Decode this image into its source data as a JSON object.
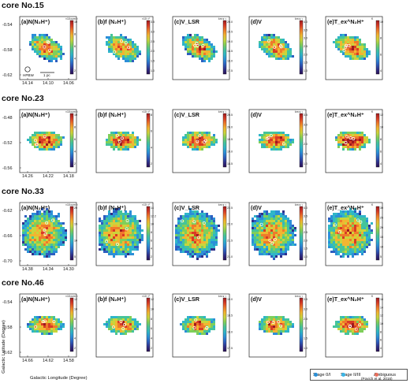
{
  "figure": {
    "rows": [
      {
        "title": "core No.15",
        "yticks": [
          "-0.54",
          "-0.58",
          "-0.62"
        ],
        "xticks": [
          "14.14",
          "14.10",
          "14.06"
        ],
        "hpbw_label": "HPBW",
        "scale_label": "1 pc",
        "panels": [
          {
            "label": "(a)",
            "quantity": "N(N₂H⁺)",
            "unit": "×10¹²cm⁻²",
            "ticks": [
              "10",
              "8",
              "6",
              "4",
              "2"
            ]
          },
          {
            "label": "(b)",
            "quantity": "f (N₂H⁺)",
            "unit": "×10⁻¹⁰",
            "ticks": [
              "3.5",
              "3.0",
              "2.5",
              "2.0",
              "1.5",
              "1.0"
            ]
          },
          {
            "label": "(c)",
            "quantity": "V_LSR",
            "unit": "km s⁻¹",
            "ticks": [
              "20.0",
              "19.5",
              "19.0",
              "18.5",
              "18.0",
              "17.5"
            ]
          },
          {
            "label": "(d)",
            "quantity": "V",
            "unit": "km s⁻¹",
            "ticks": [
              "4.0",
              "3.5",
              "3.0",
              "2.5",
              "2.0",
              "1.5",
              "1.0"
            ]
          },
          {
            "label": "(e)",
            "quantity": "T_ex^N₂H⁺",
            "unit": "K",
            "ticks": [
              "10",
              "8",
              "6",
              "4"
            ]
          }
        ]
      },
      {
        "title": "core No.23",
        "yticks": [
          "-0.48",
          "-0.52",
          "-0.56"
        ],
        "xticks": [
          "14.26",
          "14.22",
          "14.18"
        ],
        "panels": [
          {
            "label": "(a)",
            "quantity": "N(N₂H⁺)",
            "unit": "×10¹²cm⁻²",
            "ticks": [
              "10",
              "8",
              "6",
              "4",
              "2"
            ]
          },
          {
            "label": "(b)",
            "quantity": "f (N₂H⁺)",
            "unit": "×10⁻¹⁰",
            "ticks": [
              "8",
              "6",
              "4",
              "2"
            ]
          },
          {
            "label": "(c)",
            "quantity": "V_LSR",
            "unit": "km s⁻¹",
            "ticks": [
              "20.5",
              "20.0",
              "19.5",
              "19.0",
              "18.5"
            ]
          },
          {
            "label": "(d)",
            "quantity": "V",
            "unit": "km s⁻¹",
            "ticks": [
              "3.5",
              "3.0",
              "2.5",
              "2.0",
              "1.5",
              "1.0"
            ]
          },
          {
            "label": "(e)",
            "quantity": "T_ex^N₂H⁺",
            "unit": "K",
            "ticks": [
              "12",
              "10",
              "8",
              "6",
              "4"
            ]
          }
        ]
      },
      {
        "title": "core No.33",
        "yticks": [
          "-0.62",
          "-0.66",
          "-0.70"
        ],
        "xticks": [
          "14.38",
          "14.34",
          "14.30"
        ],
        "panels": [
          {
            "label": "(a)",
            "quantity": "N(N₂H⁺)",
            "unit": "×10¹²cm⁻²",
            "ticks": [
              "20",
              "15",
              "10",
              "5"
            ]
          },
          {
            "label": "(b)",
            "quantity": "f (N₂H⁺)",
            "unit": "×10⁻¹⁰",
            "ticks": [
              "14",
              "12.2",
              "10",
              "8",
              "6",
              "4",
              "2"
            ]
          },
          {
            "label": "(c)",
            "quantity": "V_LSR",
            "unit": "km s⁻¹",
            "ticks": [
              "22.5",
              "22.0",
              "21.5",
              "21.0"
            ]
          },
          {
            "label": "(d)",
            "quantity": "V",
            "unit": "km s⁻¹",
            "ticks": [
              "4.0",
              "3.5",
              "3.0",
              "2.5",
              "2.0",
              "1.5",
              "1.0"
            ]
          },
          {
            "label": "(e)",
            "quantity": "T_ex^N₂H⁺",
            "unit": "K",
            "ticks": [
              "30",
              "25",
              "20",
              "15",
              "10",
              "5"
            ]
          }
        ]
      },
      {
        "title": "core No.46",
        "yticks": [
          "-0.54",
          "-0.58",
          "-0.62"
        ],
        "xticks": [
          "14.66",
          "14.62",
          "14.58"
        ],
        "panels": [
          {
            "label": "(a)",
            "quantity": "N(N₂H⁺)",
            "unit": "×10¹²cm⁻²",
            "ticks": [
              "12",
              "10",
              "8",
              "6",
              "4",
              "2"
            ]
          },
          {
            "label": "(b)",
            "quantity": "f (N₂H⁺)",
            "unit": "×10⁻¹⁰",
            "ticks": [
              "12",
              "10",
              "8",
              "6",
              "4",
              "2"
            ]
          },
          {
            "label": "(c)",
            "quantity": "V_LSR",
            "unit": "km s⁻¹",
            "ticks": [
              "19.0",
              "18.5",
              "18.0",
              "17.5"
            ]
          },
          {
            "label": "(d)",
            "quantity": "V",
            "unit": "km s⁻¹",
            "ticks": [
              "3.5",
              "3.0",
              "2.5",
              "2.0",
              "1.5",
              "1.0"
            ]
          },
          {
            "label": "(e)",
            "quantity": "T_ex^N₂H⁺",
            "unit": "K",
            "ticks": [
              "16",
              "14",
              "12",
              "10",
              "8",
              "6",
              "4"
            ]
          }
        ]
      }
    ],
    "ylabel": "Galactic Latitude (Degree)",
    "xlabel": "Galactic Longitude (Degree)",
    "legend": {
      "stage01": "Stage 0/I",
      "stage23": "Stage II/III",
      "ambiguous": "Ambiguous",
      "reference": "(Povich et al. 2016)"
    },
    "colors": {
      "stage01": "#2a8fd6",
      "stage23": "#3bb5e6",
      "ambiguous": "#e8705e"
    }
  }
}
